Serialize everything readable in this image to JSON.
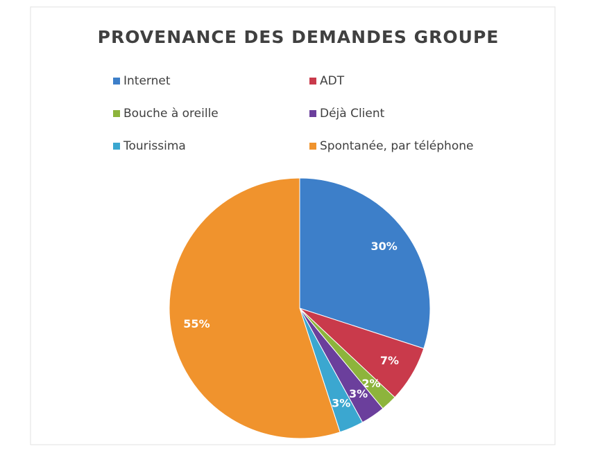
{
  "chart_data": {
    "type": "pie",
    "title": "PROVENANCE DES DEMANDES GROUPE",
    "categories": [
      "Internet",
      "ADT",
      "Bouche à oreille",
      "Déjà Client",
      "Tourissima",
      "Spontanée, par téléphone"
    ],
    "values": [
      30,
      7,
      2,
      3,
      3,
      55
    ],
    "value_labels": [
      "30%",
      "7%",
      "2%",
      "3%",
      "3%",
      "55%"
    ],
    "colors": [
      "#3d7fc9",
      "#c93a4b",
      "#8db43c",
      "#6b3f9c",
      "#3ba7d0",
      "#f0932d"
    ]
  }
}
